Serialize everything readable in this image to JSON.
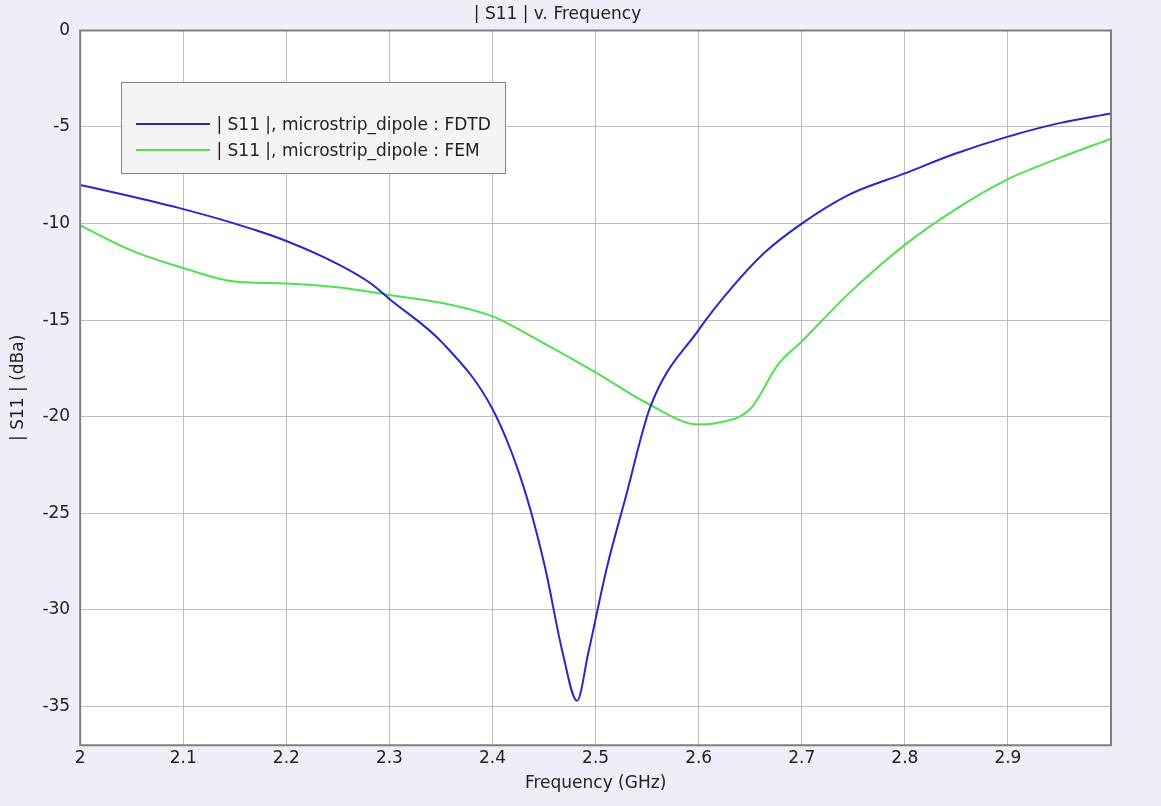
{
  "chart_data": {
    "type": "line",
    "title": "| S11 | v. Frequency",
    "xlabel": "Frequency (GHz)",
    "ylabel": "| S11 | (dBa)",
    "xlim": [
      2,
      3
    ],
    "xticks": [
      2,
      2.1,
      2.2,
      2.3,
      2.4,
      2.5,
      2.6,
      2.7,
      2.8,
      2.9
    ],
    "ylim": [
      -37,
      0
    ],
    "yticks": [
      0,
      -5,
      -10,
      -15,
      -20,
      -25,
      -30,
      -35
    ],
    "grid": true,
    "legend": "top left",
    "marker": "none",
    "line_style": "solid",
    "series": [
      {
        "name": "| S11 |, microstrip_dipole : FDTD",
        "color": "#2828c8",
        "x": [
          2.0,
          2.05,
          2.1,
          2.15,
          2.2,
          2.25,
          2.282,
          2.3,
          2.352,
          2.4,
          2.43,
          2.451,
          2.468,
          2.482,
          2.493,
          2.511,
          2.529,
          2.553,
          2.6,
          2.634,
          2.664,
          2.7,
          2.746,
          2.8,
          2.848,
          2.9,
          2.95,
          3.0
        ],
        "values": [
          -8.0,
          -8.6,
          -9.25,
          -10.0,
          -10.9,
          -12.1,
          -13.1,
          -13.9,
          -16.2,
          -19.6,
          -23.6,
          -27.8,
          -32.2,
          -34.7,
          -32.2,
          -27.8,
          -24.2,
          -19.5,
          -15.5,
          -13.2,
          -11.5,
          -10.0,
          -8.5,
          -7.4,
          -6.4,
          -5.5,
          -4.8,
          -4.3
        ]
      },
      {
        "name": "| S11 |, microstrip_dipole : FEM",
        "color": "#50e050",
        "x": [
          2.0,
          2.05,
          2.1,
          2.15,
          2.2,
          2.25,
          2.3,
          2.35,
          2.4,
          2.45,
          2.5,
          2.55,
          2.6,
          2.62,
          2.65,
          2.677,
          2.7,
          2.746,
          2.8,
          2.848,
          2.9,
          2.95,
          3.0
        ],
        "values": [
          -10.1,
          -11.4,
          -12.3,
          -13.0,
          -13.1,
          -13.3,
          -13.7,
          -14.1,
          -14.8,
          -16.2,
          -17.7,
          -19.3,
          -20.4,
          -20.3,
          -19.6,
          -17.3,
          -16.1,
          -13.6,
          -11.1,
          -9.3,
          -7.7,
          -6.6,
          -5.6
        ]
      }
    ]
  }
}
